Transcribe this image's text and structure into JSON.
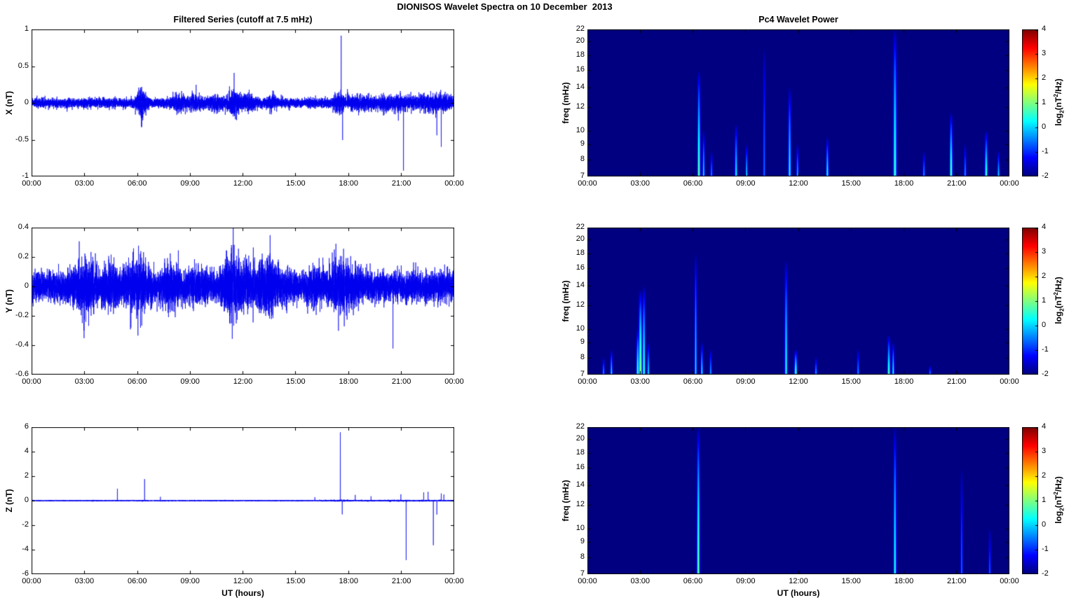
{
  "figure_title": "DIONISOS Wavelet Spectra on 10 December  2013",
  "columns": {
    "left_title": "Filtered Series (cutoff at 7.5 mHz)",
    "right_title": "Pc4 Wavelet Power"
  },
  "x_axis": {
    "label": "UT (hours)",
    "tick_labels": [
      "00:00",
      "03:00",
      "06:00",
      "09:00",
      "12:00",
      "15:00",
      "18:00",
      "21:00",
      "00:00"
    ],
    "range_hours": [
      0,
      24
    ]
  },
  "style": {
    "line_color": "#0000ee",
    "axis_color": "#000000",
    "background": "#ffffff"
  },
  "colorbar": {
    "clim": [
      -2,
      4
    ],
    "tick_values": [
      4,
      3,
      2,
      1,
      0,
      -1,
      -2
    ],
    "tick_labels": [
      "4",
      "3",
      "2",
      "1",
      "0",
      "-1",
      "-2"
    ],
    "label_text": "log2(nT2/Hz)",
    "label_parts": {
      "pre": "log",
      "sub": "2",
      "mid": "(nT",
      "sup": "2",
      "post": "/Hz)"
    }
  },
  "chart_data": [
    {
      "id": "x-filtered-series",
      "type": "line",
      "title": "Filtered Series (cutoff at 7.5 mHz)",
      "ylabel": "X (nT)",
      "ylim": [
        -1,
        1
      ],
      "yticks": [
        -1,
        -0.5,
        0,
        0.5,
        1
      ],
      "ytick_labels": [
        "-1",
        "-0.5",
        "0",
        "0.5",
        "1"
      ],
      "x_range_hours": [
        0,
        24
      ],
      "seed": 101,
      "noise_std": 0.032,
      "noise_bursts": [
        [
          6.25,
          0.2,
          3.2
        ],
        [
          8.4,
          0.25,
          2.1
        ],
        [
          9.2,
          0.35,
          1.8
        ],
        [
          10.6,
          0.6,
          1.9
        ],
        [
          11.5,
          0.35,
          2.8
        ],
        [
          12.3,
          0.3,
          2.0
        ],
        [
          13.6,
          0.2,
          1.8
        ],
        [
          17.55,
          0.25,
          2.3
        ],
        [
          18.6,
          0.7,
          1.7
        ],
        [
          20.8,
          1.0,
          1.8
        ],
        [
          22.9,
          0.8,
          2.0
        ]
      ],
      "spikes": [
        [
          6.23,
          -0.33
        ],
        [
          11.5,
          0.28
        ],
        [
          17.6,
          0.95
        ],
        [
          17.68,
          -0.5
        ],
        [
          21.15,
          -0.92
        ],
        [
          23.05,
          -0.45
        ],
        [
          23.3,
          -0.7
        ]
      ]
    },
    {
      "id": "y-filtered-series",
      "type": "line",
      "title": "Filtered Series (cutoff at 7.5 mHz)",
      "ylabel": "Y (nT)",
      "ylim": [
        -0.6,
        0.4
      ],
      "yticks": [
        -0.6,
        -0.4,
        -0.2,
        0,
        0.2,
        0.4
      ],
      "ytick_labels": [
        "-0.6",
        "-0.4",
        "-0.2",
        "0",
        "0.2",
        "0.4"
      ],
      "x_range_hours": [
        0,
        24
      ],
      "seed": 202,
      "noise_std": 0.05,
      "noise_bursts": [
        [
          3.0,
          0.4,
          2.2
        ],
        [
          4.4,
          0.3,
          1.6
        ],
        [
          6.0,
          0.5,
          2.0
        ],
        [
          8.0,
          0.4,
          1.7
        ],
        [
          9.5,
          0.4,
          1.5
        ],
        [
          11.4,
          0.4,
          2.4
        ],
        [
          12.4,
          0.3,
          1.8
        ],
        [
          13.5,
          0.5,
          2.0
        ],
        [
          16.2,
          0.4,
          1.5
        ],
        [
          17.5,
          0.5,
          1.9
        ],
        [
          18.3,
          0.3,
          1.6
        ]
      ],
      "spikes": [
        [
          2.95,
          -0.26
        ],
        [
          11.45,
          0.29
        ],
        [
          13.55,
          0.28
        ],
        [
          17.55,
          0.26
        ],
        [
          20.55,
          -0.5
        ]
      ]
    },
    {
      "id": "z-filtered-series",
      "type": "line",
      "title": "Filtered Series (cutoff at 7.5 mHz)",
      "ylabel": "Z (nT)",
      "xlabel": "UT (hours)",
      "ylim": [
        -6,
        6
      ],
      "yticks": [
        -6,
        -4,
        -2,
        0,
        2,
        4,
        6
      ],
      "ytick_labels": [
        "-6",
        "-4",
        "-2",
        "0",
        "2",
        "4",
        "6"
      ],
      "x_range_hours": [
        0,
        24
      ],
      "seed": 303,
      "noise_std": 0.022,
      "noise_bursts": [
        [
          17.6,
          0.4,
          1.8
        ],
        [
          21.0,
          1.5,
          1.5
        ]
      ],
      "spikes": [
        [
          4.85,
          1.0
        ],
        [
          6.4,
          1.82
        ],
        [
          7.3,
          0.35
        ],
        [
          16.1,
          0.3
        ],
        [
          17.55,
          5.65
        ],
        [
          17.66,
          -1.05
        ],
        [
          18.4,
          0.45
        ],
        [
          19.3,
          0.35
        ],
        [
          21.0,
          0.5
        ],
        [
          21.3,
          -4.85
        ],
        [
          22.3,
          0.65
        ],
        [
          22.55,
          0.7
        ],
        [
          22.85,
          -3.7
        ],
        [
          23.05,
          -1.2
        ],
        [
          23.3,
          0.6
        ],
        [
          23.45,
          0.5
        ]
      ]
    },
    {
      "id": "x-wavelet-power",
      "type": "heatmap",
      "title": "Pc4 Wavelet Power",
      "ylabel": "freq (mHz)",
      "yscale": "log",
      "ylim_mhz": [
        7,
        22
      ],
      "yticks": [
        7,
        8,
        9,
        10,
        12,
        14,
        16,
        18,
        20,
        22
      ],
      "ytick_labels": [
        "7",
        "8",
        "9",
        "10",
        "12",
        "14",
        "16",
        "18",
        "20",
        "22"
      ],
      "clim": [
        -2,
        4
      ],
      "background_level": -2,
      "events": [
        {
          "t": 6.33,
          "fmax": 16,
          "peak": 1.0,
          "w": 0.05
        },
        {
          "t": 6.6,
          "fmax": 10,
          "peak": 0.25,
          "w": 0.04
        },
        {
          "t": 7.05,
          "fmax": 8.5,
          "peak": -0.3,
          "w": 0.04
        },
        {
          "t": 8.45,
          "fmax": 10.5,
          "peak": 0.45,
          "w": 0.045
        },
        {
          "t": 9.05,
          "fmax": 9,
          "peak": 0.2,
          "w": 0.04
        },
        {
          "t": 10.05,
          "fmax": 19,
          "peak": -0.5,
          "w": 0.04
        },
        {
          "t": 11.5,
          "fmax": 14,
          "peak": 0.45,
          "w": 0.05
        },
        {
          "t": 11.95,
          "fmax": 9,
          "peak": 0.0,
          "w": 0.04
        },
        {
          "t": 13.65,
          "fmax": 9.5,
          "peak": 0.5,
          "w": 0.045
        },
        {
          "t": 17.5,
          "fmax": 22,
          "peak": 0.7,
          "w": 0.06
        },
        {
          "t": 19.15,
          "fmax": 8.5,
          "peak": -0.2,
          "w": 0.04
        },
        {
          "t": 20.7,
          "fmax": 11.5,
          "peak": 1.0,
          "w": 0.05
        },
        {
          "t": 21.5,
          "fmax": 9,
          "peak": -0.2,
          "w": 0.04
        },
        {
          "t": 22.7,
          "fmax": 10,
          "peak": 0.8,
          "w": 0.05
        },
        {
          "t": 23.4,
          "fmax": 8.5,
          "peak": 0.2,
          "w": 0.04
        }
      ]
    },
    {
      "id": "y-wavelet-power",
      "type": "heatmap",
      "title": "Pc4 Wavelet Power",
      "ylabel": "freq (mHz)",
      "yscale": "log",
      "ylim_mhz": [
        7,
        22
      ],
      "yticks": [
        7,
        8,
        9,
        10,
        12,
        14,
        16,
        18,
        20,
        22
      ],
      "ytick_labels": [
        "7",
        "8",
        "9",
        "10",
        "12",
        "14",
        "16",
        "18",
        "20",
        "22"
      ],
      "clim": [
        -2,
        4
      ],
      "background_level": -2,
      "events": [
        {
          "t": 0.9,
          "fmax": 8,
          "peak": -0.2,
          "w": 0.04
        },
        {
          "t": 1.35,
          "fmax": 8.5,
          "peak": 0.3,
          "w": 0.04
        },
        {
          "t": 2.85,
          "fmax": 10,
          "peak": 0.9,
          "w": 0.05
        },
        {
          "t": 3.0,
          "fmax": 13.5,
          "peak": 1.3,
          "w": 0.06
        },
        {
          "t": 3.2,
          "fmax": 14,
          "peak": 0.8,
          "w": 0.05
        },
        {
          "t": 3.45,
          "fmax": 9,
          "peak": 0.3,
          "w": 0.04
        },
        {
          "t": 6.15,
          "fmax": 18,
          "peak": 0.25,
          "w": 0.04
        },
        {
          "t": 6.5,
          "fmax": 9,
          "peak": 0.4,
          "w": 0.04
        },
        {
          "t": 7.0,
          "fmax": 8.5,
          "peak": -0.1,
          "w": 0.04
        },
        {
          "t": 11.3,
          "fmax": 17,
          "peak": 0.5,
          "w": 0.05
        },
        {
          "t": 11.85,
          "fmax": 8.5,
          "peak": 1.0,
          "w": 0.05
        },
        {
          "t": 13.0,
          "fmax": 8,
          "peak": -0.1,
          "w": 0.04
        },
        {
          "t": 15.4,
          "fmax": 8.5,
          "peak": -0.2,
          "w": 0.04
        },
        {
          "t": 17.15,
          "fmax": 9.5,
          "peak": 0.9,
          "w": 0.05
        },
        {
          "t": 17.4,
          "fmax": 9,
          "peak": 0.5,
          "w": 0.04
        },
        {
          "t": 19.5,
          "fmax": 7.5,
          "peak": -0.3,
          "w": 0.04
        }
      ]
    },
    {
      "id": "z-wavelet-power",
      "type": "heatmap",
      "title": "Pc4 Wavelet Power",
      "ylabel": "freq (mHz)",
      "xlabel": "UT (hours)",
      "yscale": "log",
      "ylim_mhz": [
        7,
        22
      ],
      "yticks": [
        7,
        8,
        9,
        10,
        12,
        14,
        16,
        18,
        20,
        22
      ],
      "ytick_labels": [
        "7",
        "8",
        "9",
        "10",
        "12",
        "14",
        "16",
        "18",
        "20",
        "22"
      ],
      "clim": [
        -2,
        4
      ],
      "background_level": -2,
      "events": [
        {
          "t": 6.3,
          "fmax": 22,
          "peak": 1.0,
          "w": 0.05
        },
        {
          "t": 17.5,
          "fmax": 22,
          "peak": 0.55,
          "w": 0.05
        },
        {
          "t": 21.3,
          "fmax": 16,
          "peak": -0.55,
          "w": 0.04
        },
        {
          "t": 22.9,
          "fmax": 10,
          "peak": -0.6,
          "w": 0.04
        }
      ]
    }
  ]
}
